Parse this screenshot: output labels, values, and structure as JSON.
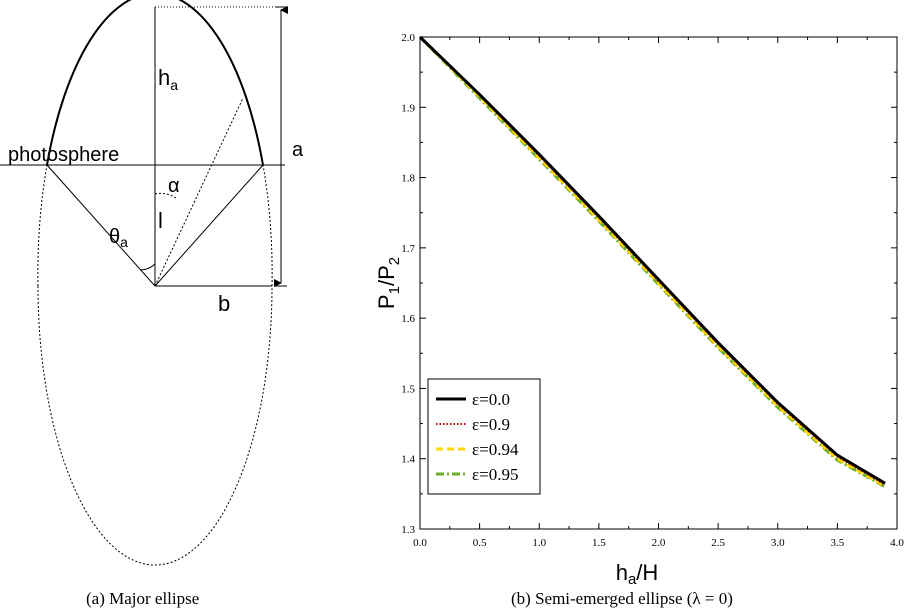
{
  "diagram": {
    "label_photosphere": "photosphere",
    "label_h": "h",
    "label_h_sub": "a",
    "label_a": "a",
    "label_alpha": "α",
    "label_l": "l",
    "label_theta": "θ",
    "label_theta_sub": "a",
    "label_b": "b",
    "caption": "(a) Major ellipse"
  },
  "chart_caption": "(b) Semi-emerged ellipse (λ = 0)",
  "chart_data": {
    "type": "line",
    "xlabel_main": "h",
    "xlabel_sub": "a",
    "xlabel_tail": "/H",
    "ylabel_main": "P",
    "ylabel_sub1": "1",
    "ylabel_mid": "/P",
    "ylabel_sub2": "2",
    "xlim": [
      0.0,
      4.0
    ],
    "ylim": [
      1.3,
      2.0
    ],
    "xticks": [
      "0.0",
      "0.5",
      "1.0",
      "1.5",
      "2.0",
      "2.5",
      "3.0",
      "3.5",
      "4.0"
    ],
    "yticks": [
      "1.3",
      "1.4",
      "1.5",
      "1.6",
      "1.7",
      "1.8",
      "1.9",
      "2.0"
    ],
    "legend_position": "lower-left",
    "series": [
      {
        "name": "ε=0.0",
        "color": "#000000",
        "style": "solid",
        "x": [
          0.0,
          0.5,
          1.0,
          1.5,
          2.0,
          2.5,
          3.0,
          3.5,
          3.9
        ],
        "y": [
          2.0,
          1.918,
          1.833,
          1.745,
          1.655,
          1.565,
          1.48,
          1.405,
          1.365
        ]
      },
      {
        "name": "ε=0.9",
        "color": "#cc0000",
        "style": "dotted",
        "x": [
          0.0,
          0.5,
          1.0,
          1.5,
          2.0,
          2.5,
          3.0,
          3.5,
          3.9
        ],
        "y": [
          2.0,
          1.917,
          1.831,
          1.743,
          1.653,
          1.563,
          1.478,
          1.403,
          1.363
        ]
      },
      {
        "name": "ε=0.94",
        "color": "#ffd700",
        "style": "dashed",
        "x": [
          0.0,
          0.5,
          1.0,
          1.5,
          2.0,
          2.5,
          3.0,
          3.5,
          3.9
        ],
        "y": [
          2.0,
          1.915,
          1.828,
          1.74,
          1.65,
          1.56,
          1.475,
          1.4,
          1.361
        ]
      },
      {
        "name": "ε=0.95",
        "color": "#6ab023",
        "style": "dashdot",
        "x": [
          0.0,
          0.5,
          1.0,
          1.5,
          2.0,
          2.5,
          3.0,
          3.5,
          3.9
        ],
        "y": [
          2.0,
          1.913,
          1.826,
          1.738,
          1.648,
          1.558,
          1.473,
          1.398,
          1.36
        ]
      }
    ]
  }
}
